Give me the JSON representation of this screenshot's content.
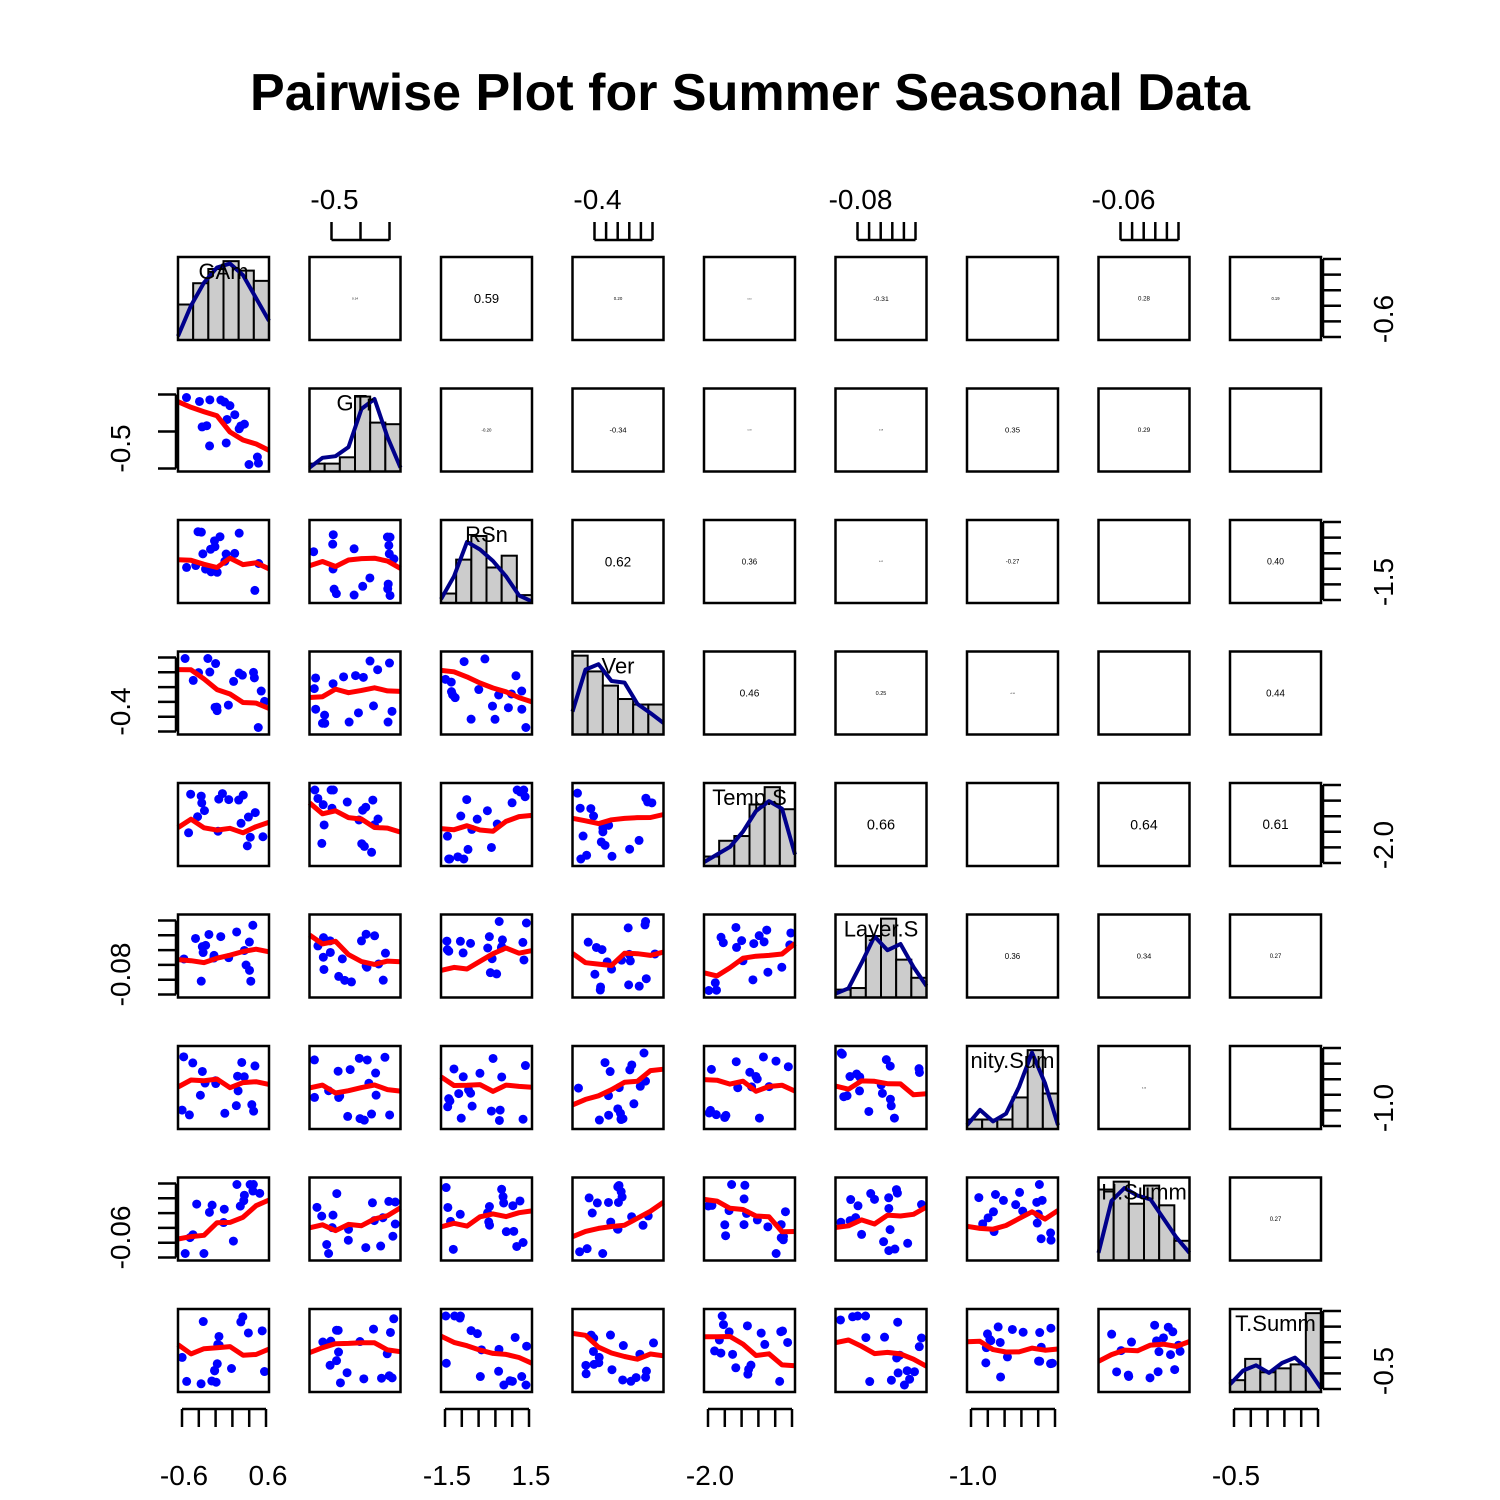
{
  "chart_data": {
    "type": "scatter",
    "title": "Pairwise Plot for Summer Seasonal Data",
    "variables": [
      "GAm",
      "GTr",
      "RSn",
      "Ver",
      "Temp.S",
      "Layer.S",
      "nity.Sum",
      "H.Summ",
      "T.Summ"
    ],
    "axis_ticks": {
      "top": [
        {
          "col": 1,
          "label": "-0.5"
        },
        {
          "col": 3,
          "label": "-0.4"
        },
        {
          "col": 5,
          "label": "-0.08"
        },
        {
          "col": 7,
          "label": "-0.06"
        }
      ],
      "bottom": [
        {
          "col": 0,
          "labels": [
            "-0.6",
            "0.6"
          ]
        },
        {
          "col": 2,
          "labels": [
            "-1.5",
            "1.5"
          ]
        },
        {
          "col": 4,
          "labels": [
            "-2.0"
          ]
        },
        {
          "col": 6,
          "labels": [
            "-1.0"
          ]
        },
        {
          "col": 8,
          "labels": [
            "-0.5"
          ]
        }
      ],
      "left": [
        {
          "row": 1,
          "label": "-0.5"
        },
        {
          "row": 3,
          "label": "-0.4"
        },
        {
          "row": 5,
          "label": "-0.08"
        },
        {
          "row": 7,
          "label": "-0.06"
        }
      ],
      "right": [
        {
          "row": 0,
          "label": "-0.6"
        },
        {
          "row": 2,
          "label": "-1.5"
        },
        {
          "row": 4,
          "label": "-2.0"
        },
        {
          "row": 6,
          "label": "-1.0"
        },
        {
          "row": 8,
          "label": "-0.5"
        }
      ]
    },
    "correlations": [
      {
        "row": 0,
        "col": 1,
        "value": "0.14"
      },
      {
        "row": 0,
        "col": 2,
        "value": "0.59"
      },
      {
        "row": 0,
        "col": 3,
        "value": "0.20"
      },
      {
        "row": 0,
        "col": 4,
        "value": "0.10"
      },
      {
        "row": 0,
        "col": 5,
        "value": "-0.31"
      },
      {
        "row": 0,
        "col": 6,
        "value": ""
      },
      {
        "row": 0,
        "col": 7,
        "value": "0.28"
      },
      {
        "row": 0,
        "col": 8,
        "value": "0.19"
      },
      {
        "row": 1,
        "col": 2,
        "value": "-0.20"
      },
      {
        "row": 1,
        "col": 3,
        "value": "-0.34"
      },
      {
        "row": 1,
        "col": 4,
        "value": "0.03"
      },
      {
        "row": 1,
        "col": 5,
        "value": "0.08"
      },
      {
        "row": 1,
        "col": 6,
        "value": "0.35"
      },
      {
        "row": 1,
        "col": 7,
        "value": "0.29"
      },
      {
        "row": 1,
        "col": 8,
        "value": ""
      },
      {
        "row": 2,
        "col": 3,
        "value": "0.62"
      },
      {
        "row": 2,
        "col": 4,
        "value": "0.36"
      },
      {
        "row": 2,
        "col": 5,
        "value": "0.02"
      },
      {
        "row": 2,
        "col": 6,
        "value": "-0.27"
      },
      {
        "row": 2,
        "col": 7,
        "value": ""
      },
      {
        "row": 2,
        "col": 8,
        "value": "0.40"
      },
      {
        "row": 3,
        "col": 4,
        "value": "0.46"
      },
      {
        "row": 3,
        "col": 5,
        "value": "0.25"
      },
      {
        "row": 3,
        "col": 6,
        "value": "-0.10"
      },
      {
        "row": 3,
        "col": 7,
        "value": ""
      },
      {
        "row": 3,
        "col": 8,
        "value": "0.44"
      },
      {
        "row": 4,
        "col": 5,
        "value": "0.66"
      },
      {
        "row": 4,
        "col": 6,
        "value": ""
      },
      {
        "row": 4,
        "col": 7,
        "value": "0.64"
      },
      {
        "row": 4,
        "col": 8,
        "value": "0.61"
      },
      {
        "row": 5,
        "col": 6,
        "value": "0.36"
      },
      {
        "row": 5,
        "col": 7,
        "value": "0.34"
      },
      {
        "row": 5,
        "col": 8,
        "value": "0.27"
      },
      {
        "row": 6,
        "col": 7,
        "value": "0.10"
      },
      {
        "row": 6,
        "col": 8,
        "value": ""
      },
      {
        "row": 7,
        "col": 8,
        "value": "0.27"
      }
    ],
    "histograms": [
      [
        0.45,
        0.72,
        0.9,
        1.0,
        0.88,
        0.75
      ],
      [
        0.1,
        0.1,
        0.18,
        0.95,
        0.62,
        0.6
      ],
      [
        0.12,
        0.55,
        0.85,
        0.45,
        0.6,
        0.1
      ],
      [
        1.0,
        0.8,
        0.62,
        0.45,
        0.38,
        0.38
      ],
      [
        0.12,
        0.32,
        0.38,
        0.78,
        1.0,
        0.72
      ],
      [
        0.1,
        0.12,
        0.78,
        1.0,
        0.48,
        0.25
      ],
      [
        0.12,
        0.12,
        0.12,
        0.4,
        1.0,
        0.45
      ],
      [
        0.9,
        1.0,
        0.72,
        0.95,
        0.7,
        0.25
      ],
      [
        0.15,
        0.42,
        0.25,
        0.3,
        0.35,
        1.0
      ]
    ],
    "density_curves": [
      [
        0.05,
        0.45,
        0.75,
        0.95,
        1.0,
        0.85,
        0.55,
        0.25
      ],
      [
        0.05,
        0.18,
        0.2,
        0.32,
        0.82,
        0.95,
        0.45,
        0.05
      ],
      [
        0.05,
        0.35,
        0.8,
        0.7,
        0.55,
        0.35,
        0.1,
        0.02
      ],
      [
        0.3,
        0.85,
        0.92,
        0.7,
        0.68,
        0.4,
        0.28,
        0.15
      ],
      [
        0.05,
        0.15,
        0.25,
        0.45,
        0.72,
        0.85,
        0.75,
        0.15
      ],
      [
        0.05,
        0.12,
        0.45,
        0.8,
        0.62,
        0.7,
        0.4,
        0.15
      ],
      [
        0.05,
        0.25,
        0.1,
        0.2,
        0.55,
        1.0,
        0.6,
        0.05
      ],
      [
        0.1,
        0.78,
        0.95,
        0.85,
        0.8,
        0.55,
        0.3,
        0.1
      ],
      [
        0.1,
        0.28,
        0.35,
        0.25,
        0.38,
        0.45,
        0.3,
        0.05
      ]
    ],
    "colors": {
      "points": "#0000ff",
      "smooth": "#ff0000",
      "density": "#00008b",
      "bars": "#cccccc",
      "frame": "#000000"
    },
    "seed": 7
  }
}
